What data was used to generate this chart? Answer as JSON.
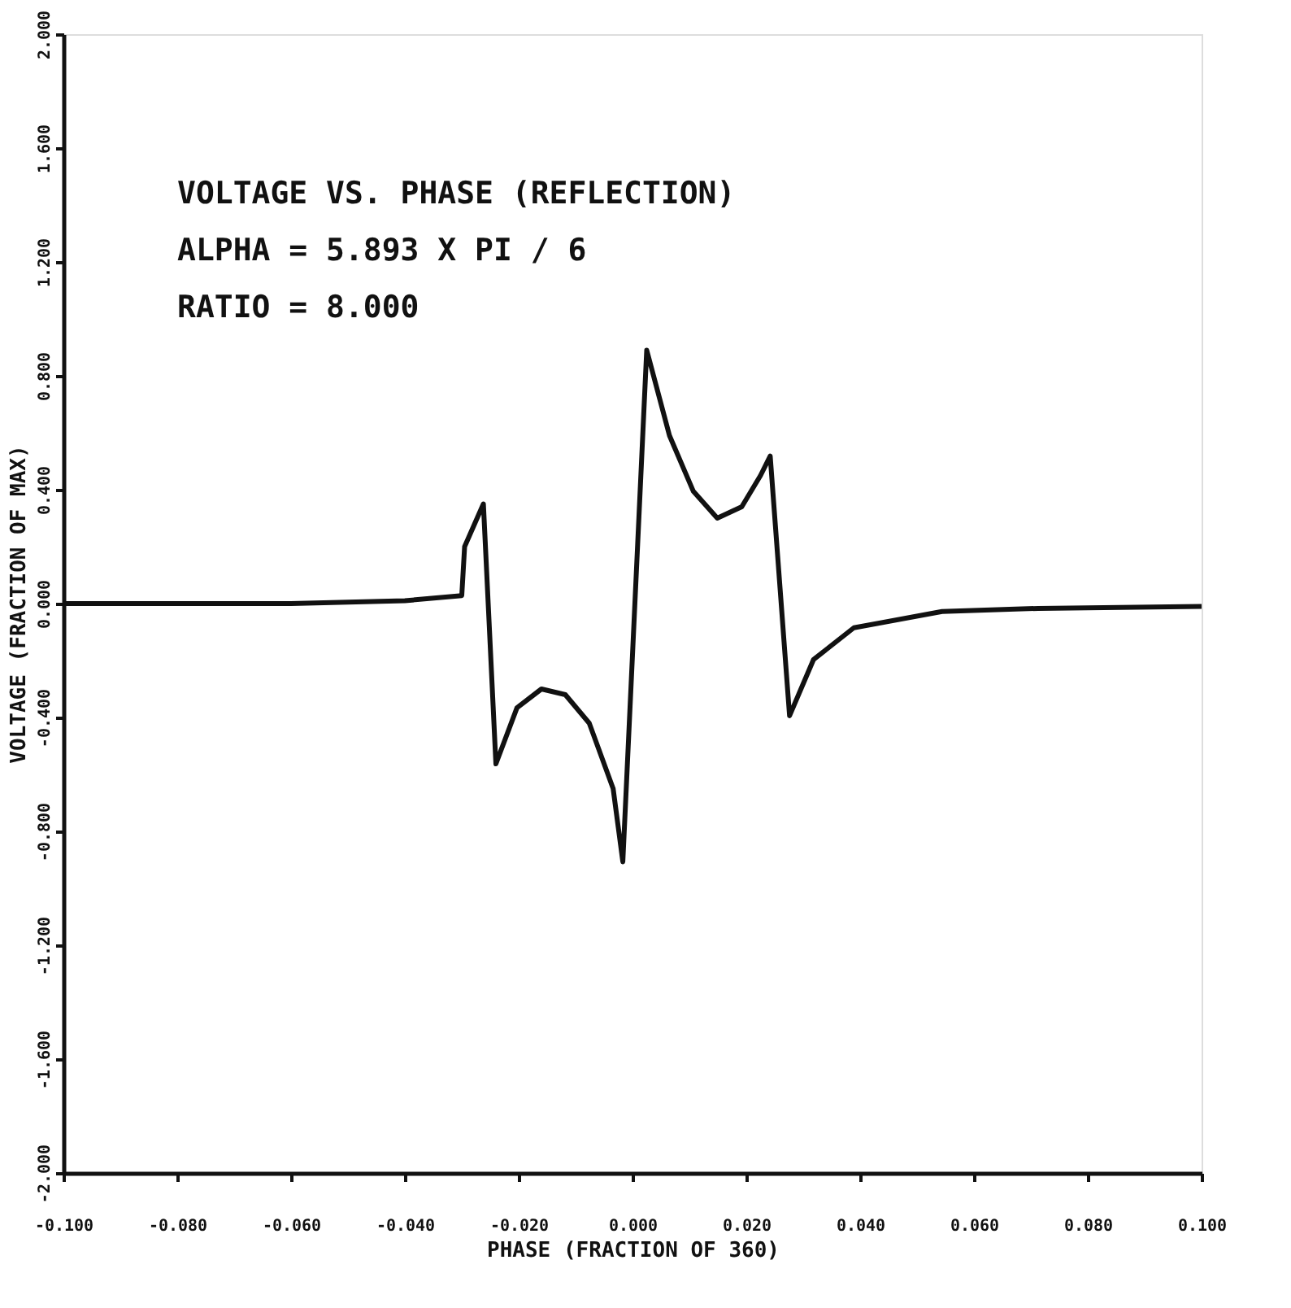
{
  "chart_data": {
    "type": "line",
    "xlabel": "PHASE (FRACTION OF 360)",
    "ylabel": "VOLTAGE (FRACTION OF MAX)",
    "annotations": [
      "VOLTAGE VS. PHASE (REFLECTION)",
      "ALPHA =   5.893  X PI / 6",
      "RATIO =   8.000"
    ],
    "x": [
      -0.1,
      -0.06,
      -0.04,
      -0.03,
      -0.0295,
      -0.0262,
      -0.024,
      -0.0203,
      -0.016,
      -0.0118,
      -0.0076,
      -0.0034,
      -0.0017,
      0.0025,
      0.0065,
      0.0107,
      0.0149,
      0.0192,
      0.0225,
      0.0242,
      0.0276,
      0.0318,
      0.0389,
      0.0544,
      0.0713,
      0.1
    ],
    "series": [
      {
        "color": "#111111",
        "values": [
          0,
          0,
          0.01,
          0.028,
          0.2,
          0.35,
          -0.563,
          -0.366,
          -0.3,
          -0.32,
          -0.42,
          -0.65,
          -0.907,
          0.89,
          0.59,
          0.394,
          0.3,
          0.34,
          0.45,
          0.518,
          -0.394,
          -0.197,
          -0.085,
          -0.028,
          -0.017,
          -0.01
        ]
      }
    ],
    "xlim": [
      -0.1,
      0.1
    ],
    "ylim": [
      -2.0,
      2.0
    ],
    "xticks": [
      {
        "value": -0.1,
        "label": "-0.100"
      },
      {
        "value": -0.08,
        "label": "-0.080"
      },
      {
        "value": -0.06,
        "label": "-0.060"
      },
      {
        "value": -0.04,
        "label": "-0.040"
      },
      {
        "value": -0.02,
        "label": "-0.020"
      },
      {
        "value": 0,
        "label": "0.000"
      },
      {
        "value": 0.02,
        "label": "0.020"
      },
      {
        "value": 0.04,
        "label": "0.040"
      },
      {
        "value": 0.06,
        "label": "0.060"
      },
      {
        "value": 0.08,
        "label": "0.080"
      },
      {
        "value": 0.1,
        "label": "0.100"
      }
    ],
    "yticks": [
      {
        "value": -2.0,
        "label": "-2.000"
      },
      {
        "value": -1.6,
        "label": "-1.600"
      },
      {
        "value": -1.2,
        "label": "-1.200"
      },
      {
        "value": -0.8,
        "label": "-0.800"
      },
      {
        "value": -0.4,
        "label": "-0.400"
      },
      {
        "value": 0,
        "label": "0.000"
      },
      {
        "value": 0.4,
        "label": "0.400"
      },
      {
        "value": 0.8,
        "label": "0.800"
      },
      {
        "value": 1.2,
        "label": "1.200"
      },
      {
        "value": 1.6,
        "label": "1.600"
      },
      {
        "value": 2.0,
        "label": "2.000"
      }
    ],
    "grid": false,
    "legend": false,
    "marker": "none",
    "line_style": "solid"
  }
}
